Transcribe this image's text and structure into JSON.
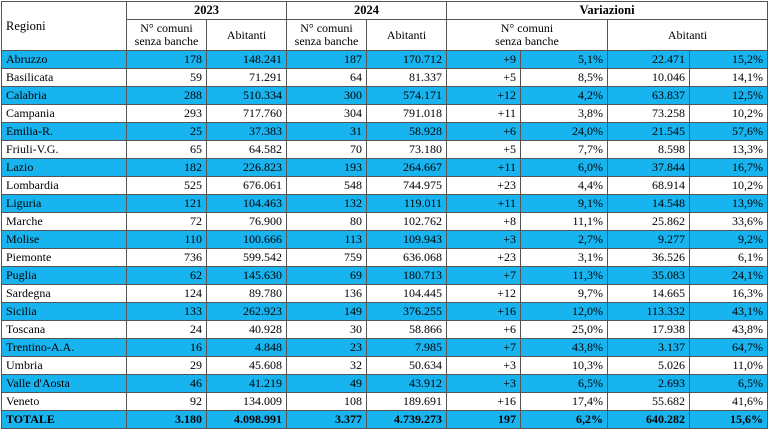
{
  "header": {
    "regioni": "Regioni",
    "y2023": "2023",
    "y2024": "2024",
    "variazioni": "Variazioni",
    "comuni_line1": "N° comuni",
    "comuni_line2": "senza banche",
    "abitanti": "Abitanti"
  },
  "rows": [
    {
      "region": "Abruzzo",
      "c23": "178",
      "a23": "148.241",
      "c24": "187",
      "a24": "170.712",
      "vc": "+9",
      "vcp": "5,1%",
      "va": "22.471",
      "vap": "15,2%"
    },
    {
      "region": "Basilicata",
      "c23": "59",
      "a23": "71.291",
      "c24": "64",
      "a24": "81.337",
      "vc": "+5",
      "vcp": "8,5%",
      "va": "10.046",
      "vap": "14,1%"
    },
    {
      "region": "Calabria",
      "c23": "288",
      "a23": "510.334",
      "c24": "300",
      "a24": "574.171",
      "vc": "+12",
      "vcp": "4,2%",
      "va": "63.837",
      "vap": "12,5%"
    },
    {
      "region": "Campania",
      "c23": "293",
      "a23": "717.760",
      "c24": "304",
      "a24": "791.018",
      "vc": "+11",
      "vcp": "3,8%",
      "va": "73.258",
      "vap": "10,2%"
    },
    {
      "region": "Emilia-R.",
      "c23": "25",
      "a23": "37.383",
      "c24": "31",
      "a24": "58.928",
      "vc": "+6",
      "vcp": "24,0%",
      "va": "21.545",
      "vap": "57,6%"
    },
    {
      "region": "Friuli-V.G.",
      "c23": "65",
      "a23": "64.582",
      "c24": "70",
      "a24": "73.180",
      "vc": "+5",
      "vcp": "7,7%",
      "va": "8.598",
      "vap": "13,3%"
    },
    {
      "region": "Lazio",
      "c23": "182",
      "a23": "226.823",
      "c24": "193",
      "a24": "264.667",
      "vc": "+11",
      "vcp": "6,0%",
      "va": "37.844",
      "vap": "16,7%"
    },
    {
      "region": "Lombardia",
      "c23": "525",
      "a23": "676.061",
      "c24": "548",
      "a24": "744.975",
      "vc": "+23",
      "vcp": "4,4%",
      "va": "68.914",
      "vap": "10,2%"
    },
    {
      "region": "Liguria",
      "c23": "121",
      "a23": "104.463",
      "c24": "132",
      "a24": "119.011",
      "vc": "+11",
      "vcp": "9,1%",
      "va": "14.548",
      "vap": "13,9%"
    },
    {
      "region": "Marche",
      "c23": "72",
      "a23": "76.900",
      "c24": "80",
      "a24": "102.762",
      "vc": "+8",
      "vcp": "11,1%",
      "va": "25.862",
      "vap": "33,6%"
    },
    {
      "region": "Molise",
      "c23": "110",
      "a23": "100.666",
      "c24": "113",
      "a24": "109.943",
      "vc": "+3",
      "vcp": "2,7%",
      "va": "9.277",
      "vap": "9,2%"
    },
    {
      "region": "Piemonte",
      "c23": "736",
      "a23": "599.542",
      "c24": "759",
      "a24": "636.068",
      "vc": "+23",
      "vcp": "3,1%",
      "va": "36.526",
      "vap": "6,1%"
    },
    {
      "region": "Puglia",
      "c23": "62",
      "a23": "145.630",
      "c24": "69",
      "a24": "180.713",
      "vc": "+7",
      "vcp": "11,3%",
      "va": "35.083",
      "vap": "24,1%"
    },
    {
      "region": "Sardegna",
      "c23": "124",
      "a23": "89.780",
      "c24": "136",
      "a24": "104.445",
      "vc": "+12",
      "vcp": "9,7%",
      "va": "14.665",
      "vap": "16,3%"
    },
    {
      "region": "Sicilia",
      "c23": "133",
      "a23": "262.923",
      "c24": "149",
      "a24": "376.255",
      "vc": "+16",
      "vcp": "12,0%",
      "va": "113.332",
      "vap": "43,1%"
    },
    {
      "region": "Toscana",
      "c23": "24",
      "a23": "40.928",
      "c24": "30",
      "a24": "58.866",
      "vc": "+6",
      "vcp": "25,0%",
      "va": "17.938",
      "vap": "43,8%"
    },
    {
      "region": "Trentino-A.A.",
      "c23": "16",
      "a23": "4.848",
      "c24": "23",
      "a24": "7.985",
      "vc": "+7",
      "vcp": "43,8%",
      "va": "3.137",
      "vap": "64,7%"
    },
    {
      "region": "Umbria",
      "c23": "29",
      "a23": "45.608",
      "c24": "32",
      "a24": "50.634",
      "vc": "+3",
      "vcp": "10,3%",
      "va": "5.026",
      "vap": "11,0%"
    },
    {
      "region": "Valle d'Aosta",
      "c23": "46",
      "a23": "41.219",
      "c24": "49",
      "a24": "43.912",
      "vc": "+3",
      "vcp": "6,5%",
      "va": "2.693",
      "vap": "6,5%"
    },
    {
      "region": "Veneto",
      "c23": "92",
      "a23": "134.009",
      "c24": "108",
      "a24": "189.691",
      "vc": "+16",
      "vcp": "17,4%",
      "va": "55.682",
      "vap": "41,6%"
    }
  ],
  "total": {
    "region": "TOTALE",
    "c23": "3.180",
    "a23": "4.098.991",
    "c24": "3.377",
    "a24": "4.739.273",
    "vc": "197",
    "vcp": "6,2%",
    "va": "640.282",
    "vap": "15,6%"
  },
  "colors": {
    "highlight": "#18b4ef"
  }
}
